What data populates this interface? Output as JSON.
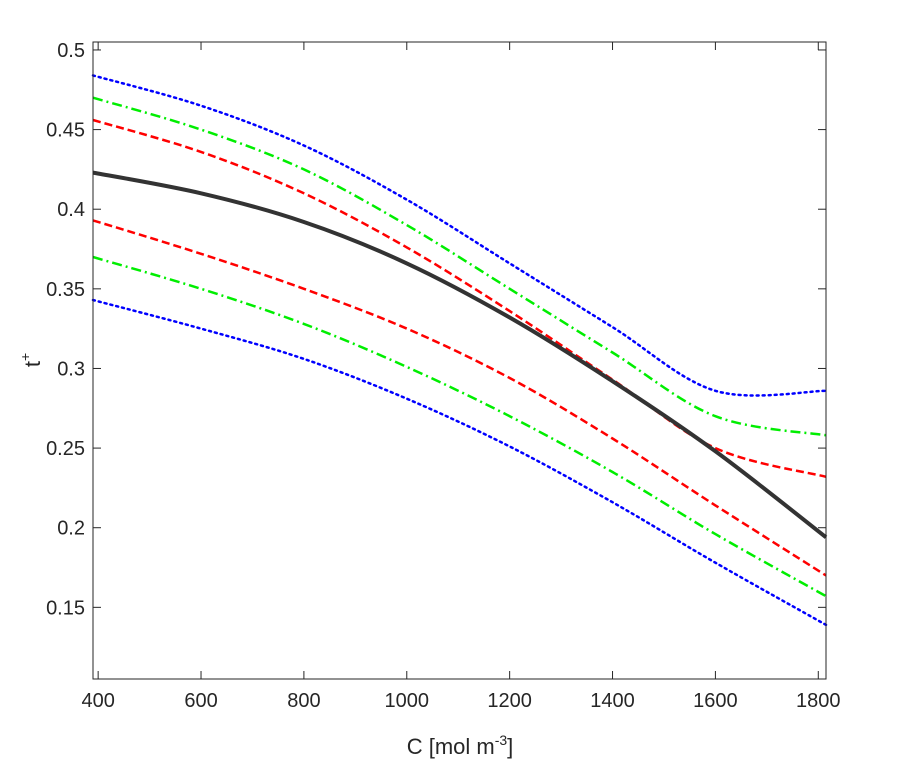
{
  "chart_data": {
    "type": "line",
    "title": "",
    "xlabel": {
      "base": "C [mol m",
      "sup": "-3",
      "end": "]"
    },
    "ylabel": {
      "base": "t",
      "sup": "+"
    },
    "xlim": [
      390,
      1815
    ],
    "ylim": [
      0.105,
      0.505
    ],
    "xticks": [
      400,
      600,
      800,
      1000,
      1200,
      1400,
      1600,
      1800
    ],
    "yticks": [
      0.15,
      0.2,
      0.25,
      0.3,
      0.35,
      0.4,
      0.45,
      0.5
    ],
    "xtick_labels": [
      "400",
      "600",
      "800",
      "1000",
      "1200",
      "1400",
      "1600",
      "1800"
    ],
    "ytick_labels": [
      "0.15",
      "0.2",
      "0.25",
      "0.3",
      "0.35",
      "0.4",
      "0.45",
      "0.5"
    ],
    "grid": false,
    "legend": "none",
    "x": [
      390,
      600,
      800,
      1000,
      1200,
      1400,
      1600,
      1815
    ],
    "series": [
      {
        "color": "#0000ff",
        "dash": "dotted",
        "values": [
          0.484,
          0.465,
          0.44,
          0.406,
          0.366,
          0.326,
          0.286,
          0.286
        ]
      },
      {
        "color": "#00ee00",
        "dash": "dashdot",
        "values": [
          0.47,
          0.45,
          0.425,
          0.39,
          0.35,
          0.31,
          0.27,
          0.258
        ]
      },
      {
        "color": "#ff0000",
        "dash": "dashed",
        "values": [
          0.456,
          0.436,
          0.41,
          0.376,
          0.336,
          0.293,
          0.25,
          0.232
        ]
      },
      {
        "color": "#333333",
        "dash": "solid",
        "values": [
          0.423,
          0.41,
          0.392,
          0.366,
          0.332,
          0.292,
          0.248,
          0.194
        ]
      },
      {
        "color": "#ff0000",
        "dash": "dashed",
        "values": [
          0.393,
          0.372,
          0.35,
          0.325,
          0.294,
          0.256,
          0.214,
          0.17
        ]
      },
      {
        "color": "#00ee00",
        "dash": "dashdot",
        "values": [
          0.37,
          0.35,
          0.328,
          0.301,
          0.27,
          0.235,
          0.196,
          0.157
        ]
      },
      {
        "color": "#0000ff",
        "dash": "dotted",
        "values": [
          0.343,
          0.325,
          0.306,
          0.281,
          0.251,
          0.216,
          0.178,
          0.139
        ]
      }
    ]
  }
}
